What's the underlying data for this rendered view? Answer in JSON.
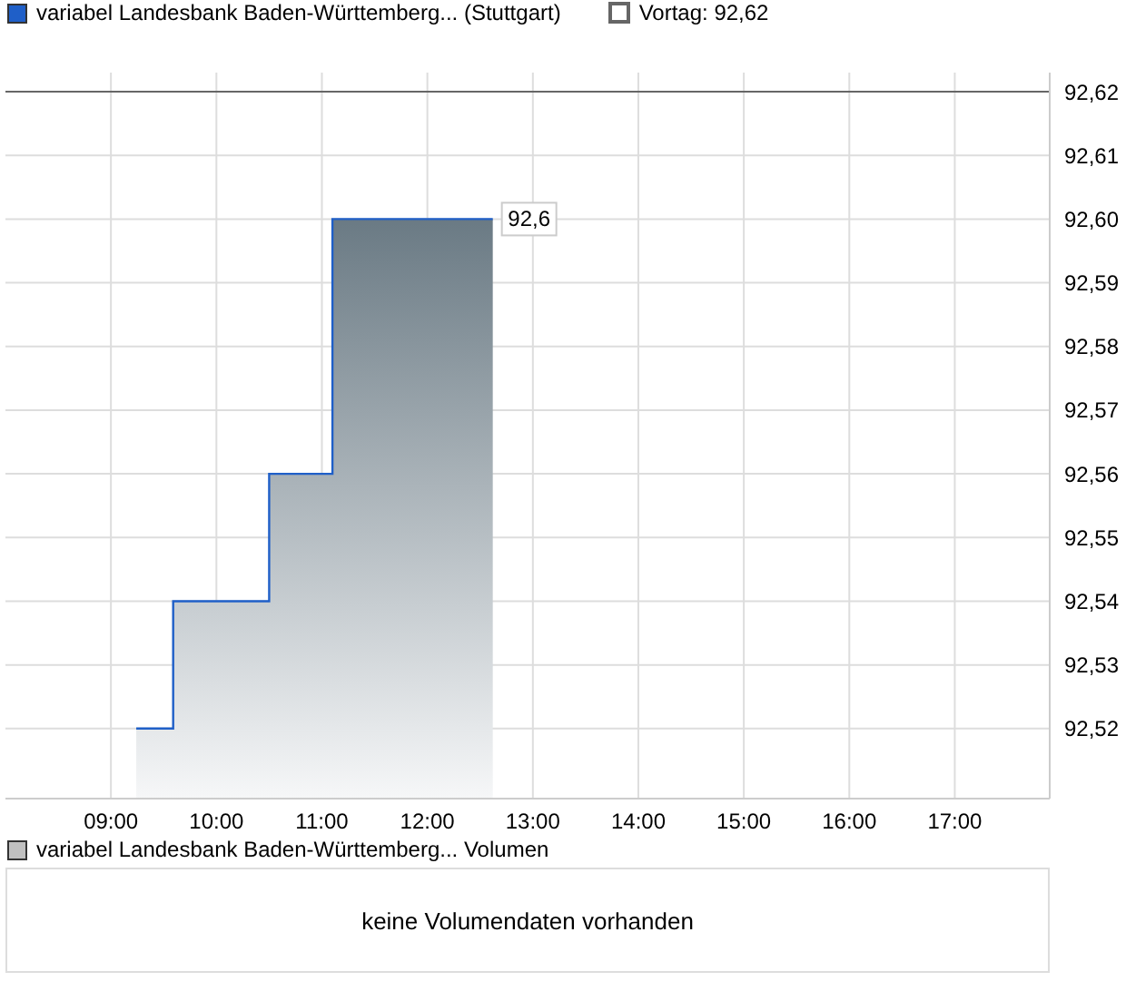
{
  "chart_data": [
    {
      "type": "step",
      "legend": "top left",
      "grid": true,
      "x": [
        9.24,
        9.59,
        10.5,
        11.1,
        12.62
      ],
      "series": [
        {
          "name": "variabel Landesbank Baden-Württemberg... (Stuttgart)",
          "type": "area",
          "color": "#1f5fc8",
          "values": [
            92.52,
            92.54,
            92.56,
            92.6,
            92.6
          ]
        }
      ],
      "xlim": [
        8.0,
        17.9
      ],
      "xticks": [
        {
          "value": 9,
          "label": "09:00"
        },
        {
          "value": 10,
          "label": "10:00"
        },
        {
          "value": 11,
          "label": "11:00"
        },
        {
          "value": 12,
          "label": "12:00"
        },
        {
          "value": 13,
          "label": "13:00"
        },
        {
          "value": 14,
          "label": "14:00"
        },
        {
          "value": 15,
          "label": "15:00"
        },
        {
          "value": 16,
          "label": "16:00"
        },
        {
          "value": 17,
          "label": "17:00"
        }
      ],
      "ylim": [
        92.509,
        92.623
      ],
      "yticks": [
        {
          "value": 92.52,
          "label": "92,52"
        },
        {
          "value": 92.53,
          "label": "92,53"
        },
        {
          "value": 92.54,
          "label": "92,54"
        },
        {
          "value": 92.55,
          "label": "92,55"
        },
        {
          "value": 92.56,
          "label": "92,56"
        },
        {
          "value": 92.57,
          "label": "92,57"
        },
        {
          "value": 92.58,
          "label": "92,58"
        },
        {
          "value": 92.59,
          "label": "92,59"
        },
        {
          "value": 92.6,
          "label": "92,60"
        },
        {
          "value": 92.61,
          "label": "92,61"
        },
        {
          "value": 92.62,
          "label": "92,62"
        }
      ],
      "ref_lines": [
        {
          "axis": "y",
          "value": 92.62,
          "label": "Vortag: 92,62",
          "color": "#666666"
        }
      ],
      "annotations": [
        {
          "text": "92,6",
          "x": 12.62,
          "y": 92.6
        }
      ]
    },
    {
      "type": "other",
      "title": "variabel Landesbank Baden-Württemberg... Volumen",
      "annotations": [
        "keine Volumendaten vorhanden"
      ]
    }
  ]
}
